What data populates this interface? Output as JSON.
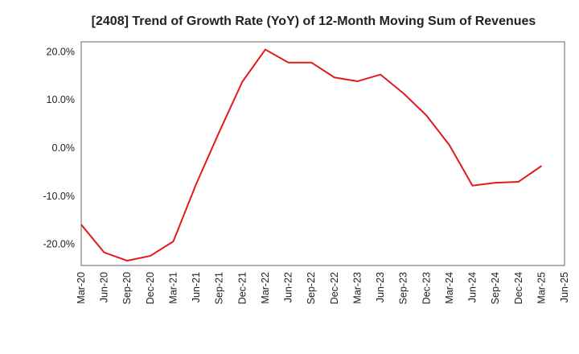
{
  "chart_data": {
    "type": "line",
    "title": "[2408]  Trend of Growth Rate (YoY) of 12-Month Moving Sum of Revenues",
    "xlabel": "",
    "ylabel": "",
    "x_ticks": [
      "Mar-20",
      "Jun-20",
      "Sep-20",
      "Dec-20",
      "Mar-21",
      "Jun-21",
      "Sep-21",
      "Dec-21",
      "Mar-22",
      "Jun-22",
      "Sep-22",
      "Dec-22",
      "Mar-23",
      "Jun-23",
      "Sep-23",
      "Dec-23",
      "Mar-24",
      "Jun-24",
      "Sep-24",
      "Dec-24",
      "Mar-25",
      "Jun-25"
    ],
    "y_ticks": [
      20,
      10,
      0,
      -10,
      -20
    ],
    "y_tick_labels": [
      "20.0%",
      "10.0%",
      "0.0%",
      "-10.0%",
      "-20.0%"
    ],
    "ylim": [
      -24.5,
      22
    ],
    "grid": true,
    "line_color": "#e31a1c",
    "series": [
      {
        "x": [
          "Mar-20",
          "Jun-20",
          "Sep-20",
          "Dec-20",
          "Mar-21",
          "Jun-21",
          "Sep-21",
          "Dec-21",
          "Mar-22",
          "Jun-22",
          "Sep-22",
          "Dec-22",
          "Mar-23",
          "Jun-23",
          "Sep-23",
          "Dec-23",
          "Mar-24",
          "Jun-24",
          "Sep-24",
          "Dec-24",
          "Mar-25"
        ],
        "values": [
          -16.0,
          -21.8,
          -23.5,
          -22.5,
          -19.5,
          -7.5,
          3.3,
          13.7,
          20.4,
          17.7,
          17.7,
          14.6,
          13.8,
          15.2,
          11.3,
          6.7,
          0.5,
          -7.9,
          -7.3,
          -7.1,
          -3.8
        ]
      }
    ]
  }
}
